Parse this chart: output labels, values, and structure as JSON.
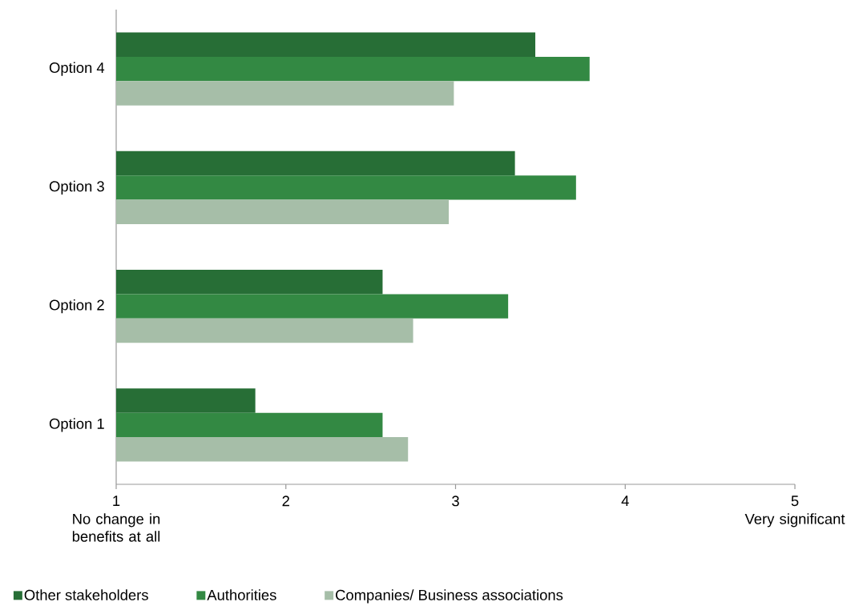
{
  "chart_data": {
    "type": "bar",
    "orientation": "horizontal",
    "categories": [
      "Option 4",
      "Option 3",
      "Option 2",
      "Option 1"
    ],
    "series": [
      {
        "name": "Other stakeholders",
        "color": "#276e36",
        "values": [
          3.47,
          3.35,
          2.57,
          1.82
        ]
      },
      {
        "name": "Authorities",
        "color": "#338943",
        "values": [
          3.79,
          3.71,
          3.31,
          2.57
        ]
      },
      {
        "name": "Companies/ Business associations",
        "color": "#a6bea8",
        "values": [
          2.99,
          2.96,
          2.75,
          2.72
        ]
      }
    ],
    "xlim": [
      1,
      5
    ],
    "xticks": [
      1,
      2,
      3,
      4,
      5
    ],
    "legend": "bottom",
    "annotations": [
      "No change in benefits at all",
      "Very significant"
    ]
  }
}
